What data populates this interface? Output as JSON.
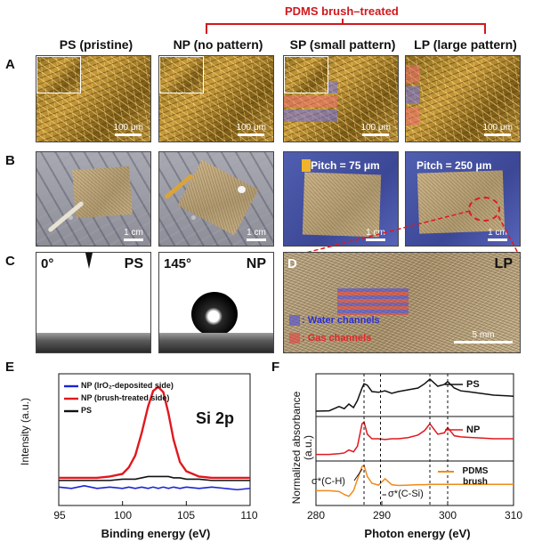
{
  "header": {
    "bracket_label": "PDMS brush–treated"
  },
  "panel_labels": {
    "A": "A",
    "B": "B",
    "C": "C",
    "D": "D",
    "E": "E",
    "F": "F"
  },
  "columns": [
    "PS (pristine)",
    "NP (no pattern)",
    "SP (small pattern)",
    "LP (large pattern)"
  ],
  "row_a": {
    "scale": "100 μm"
  },
  "row_b": {
    "scale": "1 cm",
    "pitch_sp": "Pitch = 75 μm",
    "pitch_lp": "Pitch = 250 μm"
  },
  "row_c": {
    "ps_angle": "0°",
    "ps_label": "PS",
    "np_angle": "145°",
    "np_label": "NP"
  },
  "panel_d": {
    "label": "LP",
    "water": ": Water channels",
    "gas": ": Gas channels",
    "scale": "5 mm"
  },
  "colors": {
    "accent_red": "#d0181e",
    "water": "#2b2fd8",
    "gas": "#e0262b",
    "orange": "#f08a1c"
  },
  "chart_data": [
    {
      "type": "line",
      "panel": "E",
      "annotation": "Si 2p",
      "xlabel": "Binding energy (eV)",
      "ylabel": "Intensity (a.u.)",
      "xlim": [
        95,
        110
      ],
      "x_ticks": [
        "95",
        "100",
        "105",
        "110"
      ],
      "x": [
        95,
        96,
        97,
        98,
        99,
        100,
        100.5,
        101,
        101.5,
        102,
        102.4,
        102.8,
        103.2,
        103.6,
        104,
        104.5,
        105,
        106,
        107,
        108,
        109,
        110
      ],
      "series": [
        {
          "name": "NP (IrO₂-deposited side)",
          "color": "#1a23d6",
          "values": [
            0.14,
            0.13,
            0.15,
            0.13,
            0.14,
            0.13,
            0.14,
            0.13,
            0.14,
            0.13,
            0.14,
            0.13,
            0.14,
            0.13,
            0.14,
            0.13,
            0.14,
            0.13,
            0.14,
            0.13,
            0.12,
            0.13
          ]
        },
        {
          "name": "NP (brush-treated side)",
          "color": "#e0181e",
          "values": [
            0.21,
            0.21,
            0.21,
            0.21,
            0.22,
            0.24,
            0.29,
            0.38,
            0.55,
            0.75,
            0.87,
            0.9,
            0.86,
            0.7,
            0.5,
            0.33,
            0.26,
            0.22,
            0.21,
            0.21,
            0.21,
            0.21
          ]
        },
        {
          "name": "PS",
          "color": "#111111",
          "values": [
            0.19,
            0.19,
            0.19,
            0.19,
            0.19,
            0.2,
            0.2,
            0.2,
            0.21,
            0.22,
            0.22,
            0.22,
            0.22,
            0.22,
            0.21,
            0.21,
            0.2,
            0.2,
            0.19,
            0.19,
            0.19,
            0.19
          ]
        }
      ]
    },
    {
      "type": "line",
      "panel": "F",
      "xlabel": "Photon energy (eV)",
      "ylabel": "Normalized absorbance (a.u.)",
      "xlim": [
        280,
        310
      ],
      "x_ticks": [
        "280",
        "290",
        "300",
        "310"
      ],
      "reference_lines": [
        287.3,
        289.8,
        297.3,
        300
      ],
      "annotations": [
        "σ*(C-H)",
        "σ*(C-Si)"
      ],
      "x": [
        280,
        282,
        283.5,
        284.3,
        285,
        285.7,
        286.3,
        287,
        287.3,
        287.8,
        288.5,
        289.5,
        290.5,
        291.5,
        292.5,
        294,
        295.5,
        296.5,
        297.3,
        298.5,
        299.5,
        300,
        301,
        302,
        303,
        305,
        307,
        309,
        310
      ],
      "series": [
        {
          "name": "PS",
          "color": "#111111",
          "values": [
            0.05,
            0.06,
            0.18,
            0.12,
            0.25,
            0.15,
            0.35,
            0.7,
            0.82,
            0.78,
            0.6,
            0.58,
            0.62,
            0.55,
            0.6,
            0.65,
            0.7,
            0.82,
            0.95,
            0.75,
            0.8,
            0.88,
            0.7,
            0.62,
            0.6,
            0.55,
            0.5,
            0.48,
            0.47
          ]
        },
        {
          "name": "NP",
          "color": "#e0181e",
          "values": [
            0.08,
            0.08,
            0.1,
            0.12,
            0.2,
            0.15,
            0.3,
            0.9,
            0.95,
            0.62,
            0.5,
            0.5,
            0.48,
            0.5,
            0.5,
            0.53,
            0.6,
            0.72,
            0.9,
            0.62,
            0.66,
            0.8,
            0.58,
            0.55,
            0.54,
            0.52,
            0.5,
            0.5,
            0.5
          ]
        },
        {
          "name": "PDMS brush",
          "color": "#f08a1c",
          "values": [
            0.3,
            0.3,
            0.28,
            0.2,
            0.15,
            0.3,
            0.6,
            0.95,
            0.98,
            0.68,
            0.5,
            0.45,
            0.62,
            0.46,
            0.44,
            0.45,
            0.46,
            0.46,
            0.47,
            0.47,
            0.47,
            0.47,
            0.47,
            0.47,
            0.47,
            0.47,
            0.47,
            0.47,
            0.47
          ]
        }
      ]
    }
  ]
}
